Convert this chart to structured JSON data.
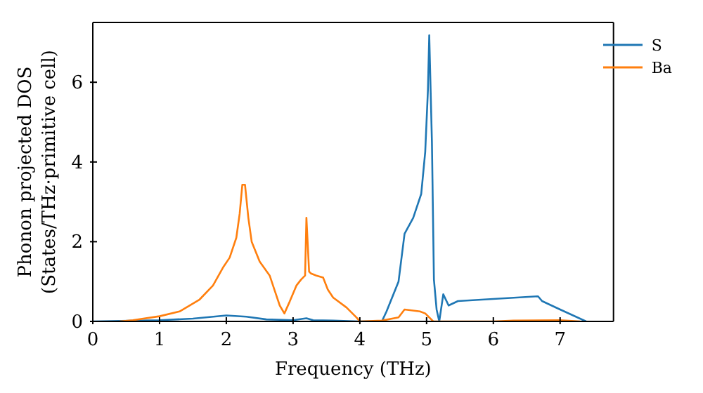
{
  "chart_data": {
    "type": "line",
    "xlabel": "Frequency (THz)",
    "ylabel": "Phonon projected DOS\n(States/THz·primitive cell)",
    "xlim": [
      0,
      7.8
    ],
    "ylim": [
      0,
      7.5
    ],
    "xticks": [
      0,
      1,
      2,
      3,
      4,
      5,
      6,
      7
    ],
    "yticks": [
      0,
      2,
      4,
      6
    ],
    "grid": false,
    "legend": "top right",
    "marker": "none",
    "line_style": "solid",
    "series": [
      {
        "name": "S",
        "color": "#1f77b4",
        "x": [
          0,
          1,
          1.5,
          2,
          2.3,
          2.6,
          3,
          3.2,
          3.3,
          3.6,
          4,
          4.33,
          4.4,
          4.58,
          4.67,
          4.8,
          4.92,
          4.98,
          5.02,
          5.04,
          5.08,
          5.11,
          5.15,
          5.19,
          5.25,
          5.33,
          5.47,
          6.67,
          6.73,
          7,
          7.39
        ],
        "values": [
          0,
          0.03,
          0.07,
          0.15,
          0.12,
          0.05,
          0.03,
          0.08,
          0.03,
          0.02,
          0,
          0,
          0.25,
          1.0,
          2.2,
          2.6,
          3.2,
          4.26,
          5.8,
          7.18,
          4.5,
          1.05,
          0.3,
          0,
          0.68,
          0.4,
          0.51,
          0.63,
          0.51,
          0.3,
          0
        ]
      },
      {
        "name": "Ba",
        "color": "#ff7f0e",
        "x": [
          0.4,
          0.6,
          1,
          1.3,
          1.6,
          1.8,
          1.95,
          2.05,
          2.15,
          2.2,
          2.24,
          2.28,
          2.33,
          2.38,
          2.5,
          2.65,
          2.72,
          2.8,
          2.87,
          2.95,
          3.05,
          3.12,
          3.18,
          3.2,
          3.24,
          3.27,
          3.35,
          3.45,
          3.52,
          3.6,
          3.8,
          3.95,
          4,
          4.33,
          4.58,
          4.67,
          4.9,
          4.98,
          5.1,
          6,
          6.3,
          7,
          7.3
        ],
        "values": [
          0,
          0.03,
          0.13,
          0.25,
          0.55,
          0.9,
          1.35,
          1.6,
          2.1,
          2.7,
          3.43,
          3.43,
          2.6,
          2.0,
          1.5,
          1.15,
          0.8,
          0.4,
          0.2,
          0.5,
          0.9,
          1.05,
          1.15,
          2.6,
          1.25,
          1.2,
          1.15,
          1.1,
          0.8,
          0.6,
          0.35,
          0.1,
          0,
          0.02,
          0.1,
          0.3,
          0.25,
          0.2,
          0,
          0,
          0.02,
          0.03,
          0
        ]
      }
    ]
  }
}
